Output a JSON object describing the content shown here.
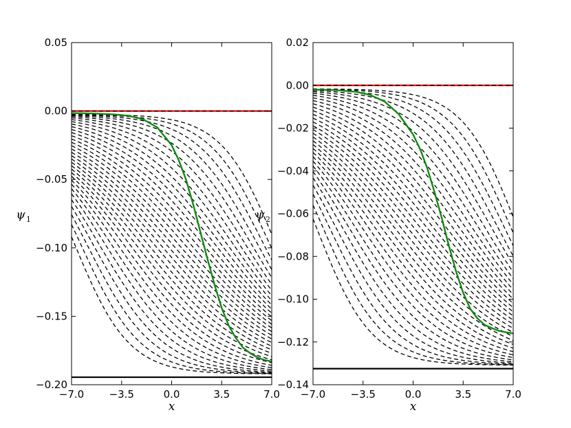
{
  "chart_data": [
    {
      "type": "line",
      "title": "",
      "xlabel": "x",
      "ylabel": "ψ",
      "ylabel_sub": "1",
      "xlim": [
        -7.0,
        7.0
      ],
      "ylim": [
        -0.2,
        0.05
      ],
      "xticks": [
        -7.0,
        -3.5,
        0.0,
        3.5,
        7.0
      ],
      "xtick_labels": [
        "−7.0",
        "−3.5",
        "0.0",
        "3.5",
        "7.0"
      ],
      "yticks": [
        0.05,
        0.0,
        -0.05,
        -0.1,
        -0.15,
        -0.2
      ],
      "ytick_labels": [
        "0.05",
        "0.00",
        "−0.05",
        "−0.10",
        "−0.15",
        "−0.20"
      ],
      "grid": false,
      "reference_lines": [
        {
          "y": 0.0,
          "color": "#ff0000",
          "style": "solid"
        },
        {
          "y": 0.0,
          "color": "#000000",
          "style": "dashed"
        },
        {
          "y": -0.1945,
          "color": "#000000",
          "style": "solid"
        }
      ],
      "main_curve": {
        "color": "#118811",
        "style": "solid",
        "x": [
          -7.0,
          -5.5,
          -4.0,
          -3.0,
          -2.0,
          -1.0,
          0.0,
          0.5,
          1.0,
          1.5,
          2.0,
          2.5,
          3.0,
          3.5,
          4.0,
          4.5,
          5.0,
          5.5,
          6.0,
          6.5,
          7.0
        ],
        "y": [
          -0.0015,
          -0.0018,
          -0.0025,
          -0.0035,
          -0.006,
          -0.012,
          -0.025,
          -0.036,
          -0.05,
          -0.068,
          -0.088,
          -0.108,
          -0.127,
          -0.144,
          -0.157,
          -0.166,
          -0.173,
          -0.177,
          -0.18,
          -0.182,
          -0.183
        ]
      },
      "family": {
        "color": "#000000",
        "style": "dashed",
        "count": 34,
        "y_upper": 0.0,
        "y_lower": -0.1945,
        "converge_x": 7.0,
        "note": "dashed solution family between the two limits"
      }
    },
    {
      "type": "line",
      "title": "",
      "xlabel": "x",
      "ylabel": "ψ",
      "ylabel_sub": "2",
      "xlim": [
        -7.0,
        7.0
      ],
      "ylim": [
        -0.14,
        0.02
      ],
      "xticks": [
        -7.0,
        -3.5,
        0.0,
        3.5,
        7.0
      ],
      "xtick_labels": [
        "−7.0",
        "−3.5",
        "0.0",
        "3.5",
        "7.0"
      ],
      "yticks": [
        0.02,
        0.0,
        -0.02,
        -0.04,
        -0.06,
        -0.08,
        -0.1,
        -0.12,
        -0.14
      ],
      "ytick_labels": [
        "0.02",
        "0.00",
        "−0.02",
        "−0.04",
        "−0.06",
        "−0.08",
        "−0.10",
        "−0.12",
        "−0.14"
      ],
      "grid": false,
      "reference_lines": [
        {
          "y": 0.0,
          "color": "#ff0000",
          "style": "solid"
        },
        {
          "y": 0.0,
          "color": "#000000",
          "style": "dashed"
        },
        {
          "y": -0.1325,
          "color": "#000000",
          "style": "solid"
        }
      ],
      "main_curve": {
        "color": "#118811",
        "style": "solid",
        "x": [
          -7.0,
          -5.5,
          -4.0,
          -3.0,
          -2.0,
          -1.0,
          0.0,
          0.5,
          1.0,
          1.5,
          2.0,
          2.5,
          3.0,
          3.5,
          4.0,
          4.5,
          5.0,
          5.5,
          6.0,
          6.5,
          7.0
        ],
        "y": [
          -0.002,
          -0.0022,
          -0.003,
          -0.0045,
          -0.0075,
          -0.0135,
          -0.023,
          -0.03,
          -0.039,
          -0.05,
          -0.062,
          -0.075,
          -0.087,
          -0.097,
          -0.1045,
          -0.109,
          -0.112,
          -0.1135,
          -0.1148,
          -0.1155,
          -0.116
        ]
      },
      "family": {
        "color": "#000000",
        "style": "dashed",
        "count": 32,
        "y_upper": 0.0,
        "y_lower": -0.1325,
        "converge_x": 7.0,
        "note": "dashed solution family between the two limits"
      }
    }
  ]
}
